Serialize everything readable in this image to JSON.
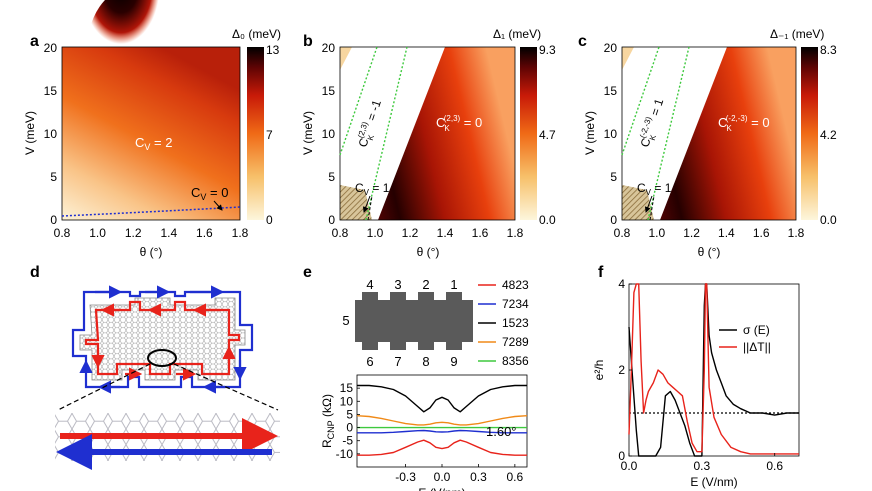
{
  "panels": {
    "a": {
      "letter": "a",
      "cbar_title": "Δ₀ (meV)",
      "cbar_ticks": [
        "13",
        "7",
        "0"
      ],
      "annotation_main": "C",
      "annotation_main_sub": "V",
      "annotation_main_val": " = 2",
      "annotation_line": "C",
      "annotation_line_sub": "V",
      "annotation_line_val": " = 0"
    },
    "b": {
      "letter": "b",
      "cbar_title": "Δ₁ (meV)",
      "cbar_ticks": [
        "9.3",
        "4.7",
        "0.0"
      ],
      "ck_main": "C",
      "ck_main_sub": "K",
      "ck_main_sup": "(2,3)",
      "ck_main_val": " = 0",
      "ck_rot": "C",
      "ck_rot_sub": "K",
      "ck_rot_sup": "(2,3)",
      "ck_rot_val": " = -1",
      "cv": "C",
      "cv_sub": "V",
      "cv_val": " = 1"
    },
    "c": {
      "letter": "c",
      "cbar_title": "Δ₋₁ (meV)",
      "cbar_ticks": [
        "8.3",
        "4.2",
        "0.0"
      ],
      "ck_main": "C",
      "ck_main_sub": "K",
      "ck_main_sup": "(-2,-3)",
      "ck_main_val": " = 0",
      "ck_rot": "C",
      "ck_rot_sub": "K",
      "ck_rot_sup": "(-2,-3)",
      "ck_rot_val": " = 1",
      "cv": "C",
      "cv_sub": "V",
      "cv_val": " = 1"
    },
    "d": {
      "letter": "d"
    },
    "e": {
      "letter": "e",
      "contacts": [
        "4",
        "3",
        "2",
        "1",
        "5",
        "6",
        "7",
        "8",
        "9"
      ],
      "angle_label": "1.60°"
    },
    "f": {
      "letter": "f"
    }
  },
  "colors": {
    "red": "#e8231b",
    "blue": "#1f2fd0",
    "black": "#000000",
    "orange": "#f08a18",
    "green": "#3ec93e",
    "cbar_top": "#000000",
    "cbar_bottom": "#fdf6dc"
  },
  "chart_data": [
    {
      "id": "a",
      "type": "heatmap",
      "title": "",
      "xlabel": "θ (°)",
      "ylabel": "V (meV)",
      "xlim": [
        0.8,
        1.8
      ],
      "ylim": [
        0,
        20
      ],
      "xticks": [
        "0.8",
        "1.0",
        "1.2",
        "1.4",
        "1.6",
        "1.8"
      ],
      "yticks": [
        "0",
        "5",
        "10",
        "15",
        "20"
      ],
      "colorbar": {
        "label": "Δ₀ (meV)",
        "range": [
          0,
          13
        ]
      },
      "boundary_line": {
        "style": "dotted",
        "color": "blue",
        "x": [
          0.8,
          1.8
        ],
        "y": [
          0.4,
          1.5
        ]
      }
    },
    {
      "id": "b",
      "type": "heatmap",
      "xlabel": "θ (°)",
      "ylabel": "V (meV)",
      "xlim": [
        0.8,
        1.8
      ],
      "ylim": [
        0,
        20
      ],
      "xticks": [
        "0.8",
        "1.0",
        "1.2",
        "1.4",
        "1.6",
        "1.8"
      ],
      "yticks": [
        "0",
        "5",
        "10",
        "15",
        "20"
      ],
      "colorbar": {
        "label": "Δ₁ (meV)",
        "range": [
          0,
          9.3
        ]
      },
      "boundary_lines": [
        {
          "style": "dotted",
          "color": "green",
          "x": [
            0.8,
            1.0
          ],
          "y": [
            12.5,
            20
          ]
        },
        {
          "style": "dotted",
          "color": "green",
          "x": [
            0.97,
            1.12
          ],
          "y": [
            0,
            20
          ]
        },
        {
          "style": "dashed",
          "color": "black",
          "x": [
            0.97,
            0.99
          ],
          "y": [
            0,
            2
          ]
        }
      ]
    },
    {
      "id": "c",
      "type": "heatmap",
      "xlabel": "θ (°)",
      "ylabel": "V (meV)",
      "xlim": [
        0.8,
        1.8
      ],
      "ylim": [
        0,
        20
      ],
      "xticks": [
        "0.8",
        "1.0",
        "1.2",
        "1.4",
        "1.6",
        "1.8"
      ],
      "yticks": [
        "0",
        "5",
        "10",
        "15",
        "20"
      ],
      "colorbar": {
        "label": "Δ₋₁ (meV)",
        "range": [
          0,
          8.3
        ]
      },
      "boundary_lines": [
        {
          "style": "dotted",
          "color": "green",
          "x": [
            0.8,
            1.0
          ],
          "y": [
            12.5,
            20
          ]
        },
        {
          "style": "dotted",
          "color": "green",
          "x": [
            0.97,
            1.12
          ],
          "y": [
            0,
            20
          ]
        },
        {
          "style": "dashed",
          "color": "black",
          "x": [
            0.97,
            0.99
          ],
          "y": [
            0,
            2
          ]
        }
      ]
    },
    {
      "id": "e",
      "type": "line",
      "xlabel": "E (V/nm)",
      "ylabel": "R",
      "ylabel_sub": "CNP",
      "ylabel_unit": " (kΩ)",
      "xlim": [
        -0.7,
        0.7
      ],
      "ylim": [
        -15,
        20
      ],
      "xticks": [
        -0.3,
        0.0,
        0.3,
        0.6
      ],
      "xtick_labels": [
        "-0.3",
        "0.0",
        "0.3",
        "0.6"
      ],
      "yticks": [
        -10,
        -5,
        0,
        5,
        10,
        15
      ],
      "ytick_labels": [
        "-10",
        "-5",
        "0",
        "5",
        "10",
        "15"
      ],
      "legend_position": "top-right",
      "x": [
        -0.7,
        -0.6,
        -0.5,
        -0.4,
        -0.3,
        -0.2,
        -0.15,
        -0.1,
        -0.05,
        0.0,
        0.05,
        0.1,
        0.15,
        0.2,
        0.3,
        0.4,
        0.5,
        0.6,
        0.7
      ],
      "series": [
        {
          "name": "4823",
          "color": "red",
          "values": [
            -10.5,
            -10.5,
            -10.2,
            -9.5,
            -7.5,
            -5.5,
            -4.8,
            -5.8,
            -7.5,
            -8.0,
            -7.5,
            -5.8,
            -4.8,
            -5.5,
            -7.5,
            -9.5,
            -10.2,
            -10.5,
            -10.5
          ]
        },
        {
          "name": "7234",
          "color": "blue",
          "values": [
            -2.0,
            -2.0,
            -2.0,
            -1.8,
            -1.5,
            -1.2,
            -1.1,
            -1.3,
            -1.6,
            -1.7,
            -1.6,
            -1.3,
            -1.1,
            -1.2,
            -1.5,
            -1.8,
            -2.0,
            -2.0,
            -2.0
          ]
        },
        {
          "name": "1523",
          "color": "black",
          "values": [
            16.0,
            16.0,
            15.5,
            14.5,
            12.0,
            8.0,
            6.0,
            7.5,
            10.5,
            11.5,
            10.5,
            7.5,
            6.0,
            8.0,
            12.0,
            14.5,
            15.5,
            16.0,
            16.0
          ]
        },
        {
          "name": "7289",
          "color": "orange",
          "values": [
            4.5,
            4.2,
            3.5,
            2.5,
            1.5,
            1.0,
            1.0,
            1.3,
            1.8,
            2.0,
            1.8,
            1.3,
            1.0,
            1.0,
            1.5,
            2.5,
            3.5,
            4.2,
            4.5
          ]
        },
        {
          "name": "8356",
          "color": "green",
          "values": [
            0,
            0,
            0,
            0,
            0,
            0,
            0,
            0,
            0,
            0,
            0,
            0,
            0,
            0,
            0,
            0,
            0,
            0,
            0
          ]
        }
      ]
    },
    {
      "id": "f",
      "type": "line",
      "xlabel": "E (V/nm)",
      "ylabel": "e²/h",
      "xlim": [
        0,
        0.7
      ],
      "ylim": [
        0,
        4
      ],
      "xticks": [
        0.0,
        0.3,
        0.6
      ],
      "xtick_labels": [
        "0.0",
        "0.3",
        "0.6"
      ],
      "yticks": [
        0,
        2,
        4
      ],
      "ytick_labels": [
        "0",
        "2",
        "4"
      ],
      "legend_position": "top-right",
      "reference_line": {
        "y": 1,
        "style": "dotted"
      },
      "series": [
        {
          "name": "σ (E)",
          "color": "black",
          "x": [
            0.0,
            0.015,
            0.03,
            0.04,
            0.055,
            0.07,
            0.09,
            0.11,
            0.13,
            0.15,
            0.17,
            0.19,
            0.21,
            0.23,
            0.25,
            0.27,
            0.28,
            0.29,
            0.3,
            0.31,
            0.315,
            0.32,
            0.33,
            0.34,
            0.36,
            0.38,
            0.4,
            0.43,
            0.46,
            0.5,
            0.55,
            0.6,
            0.65,
            0.7
          ],
          "values": [
            3.0,
            1.8,
            0.6,
            0.0,
            0.0,
            0.0,
            0.0,
            0.0,
            0.2,
            1.4,
            1.5,
            1.3,
            1.0,
            0.7,
            0.3,
            0.0,
            0.0,
            0.0,
            0.0,
            3.5,
            4.0,
            4.0,
            2.8,
            2.4,
            2.0,
            1.7,
            1.4,
            1.2,
            1.1,
            1.0,
            1.0,
            0.95,
            1.0,
            1.0
          ]
        },
        {
          "name": "||ΔT||",
          "color": "red",
          "x": [
            0.0,
            0.01,
            0.02,
            0.03,
            0.04,
            0.05,
            0.06,
            0.07,
            0.08,
            0.1,
            0.12,
            0.14,
            0.16,
            0.18,
            0.2,
            0.22,
            0.24,
            0.26,
            0.28,
            0.3,
            0.31,
            0.315,
            0.32,
            0.33,
            0.35,
            0.38,
            0.42,
            0.46,
            0.5,
            0.6,
            0.7
          ],
          "values": [
            0.5,
            2.0,
            3.8,
            4.0,
            4.0,
            2.2,
            1.0,
            1.3,
            1.5,
            1.7,
            2.0,
            1.9,
            1.7,
            1.6,
            1.5,
            1.4,
            0.8,
            0.3,
            0.1,
            0.1,
            2.0,
            4.0,
            4.0,
            1.6,
            0.9,
            0.5,
            0.2,
            0.1,
            0.05,
            0.05,
            0.05
          ]
        }
      ]
    }
  ]
}
